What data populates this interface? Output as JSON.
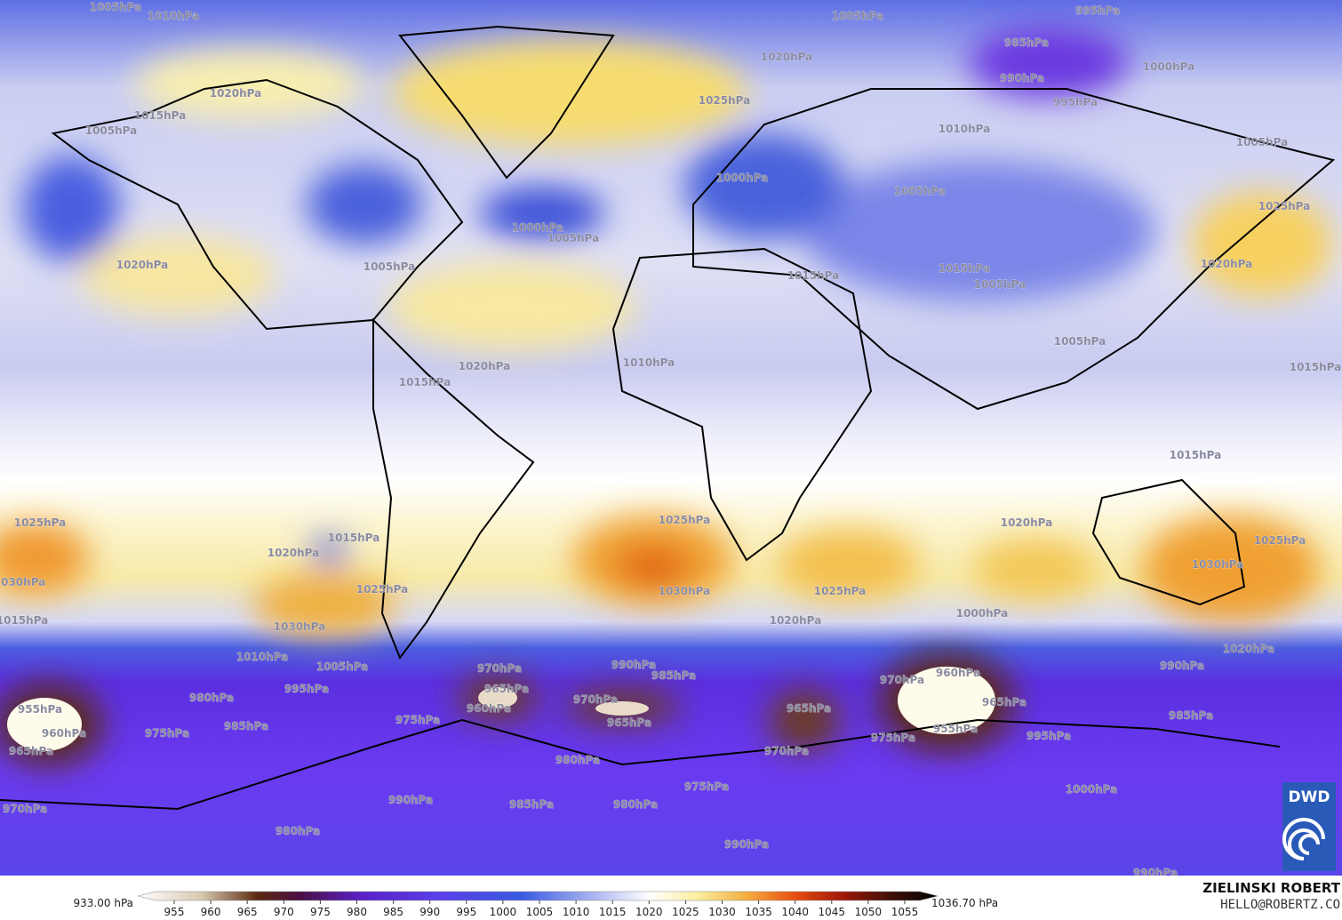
{
  "map": {
    "isobar_labels": [
      "1005hPa",
      "1010hPa",
      "1005hPa",
      "995hPa",
      "985hPa",
      "1020hPa",
      "1000hPa",
      "990hPa",
      "1025hPa",
      "995hPa",
      "1020hPa",
      "1015hPa",
      "1005hPa",
      "1010hPa",
      "1005hPa",
      "1000hPa",
      "1005hPa",
      "1000hPa",
      "1005hPa",
      "1020hPa",
      "1005hPa",
      "1015hPa",
      "1015hPa",
      "1005hPa",
      "1020hPa",
      "1025hPa",
      "1005hPa",
      "1010hPa",
      "1020hPa",
      "1015hPa",
      "1015hPa",
      "1015hPa",
      "1025hPa",
      "1025hPa",
      "1020hPa",
      "1025hPa",
      "1030hPa",
      "1020hPa",
      "1015hPa",
      "1030hPa",
      "1025hPa",
      "1030hPa",
      "1025hPa",
      "1015hPa",
      "1030hPa",
      "1020hPa",
      "1000hPa",
      "1020hPa",
      "1010hPa",
      "1005hPa",
      "990hPa",
      "985hPa",
      "970hPa",
      "965hPa",
      "960hPa",
      "970hPa",
      "965hPa",
      "995hPa",
      "980hPa",
      "955hPa",
      "960hPa",
      "975hPa",
      "985hPa",
      "975hPa",
      "960hPa",
      "970hPa",
      "965hPa",
      "955hPa",
      "965hPa",
      "975hPa",
      "970hPa",
      "980hPa",
      "990hPa",
      "985hPa",
      "995hPa",
      "1000hPa",
      "975hPa",
      "980hPa",
      "990hPa",
      "985hPa",
      "970hPa",
      "980hPa",
      "990hPa",
      "990hPa",
      "965hPa"
    ]
  },
  "colorbar": {
    "min_label": "933.00 hPa",
    "max_label": "1036.70 hPa",
    "ticks": [
      955,
      960,
      965,
      970,
      975,
      980,
      985,
      990,
      995,
      1000,
      1005,
      1010,
      1015,
      1020,
      1025,
      1030,
      1035,
      1040,
      1045,
      1050,
      1055
    ]
  },
  "credits": {
    "author": "ZIELINSKI ROBERT",
    "contact": "HELLO@ROBERTZ.CO",
    "logo": "DWD"
  }
}
